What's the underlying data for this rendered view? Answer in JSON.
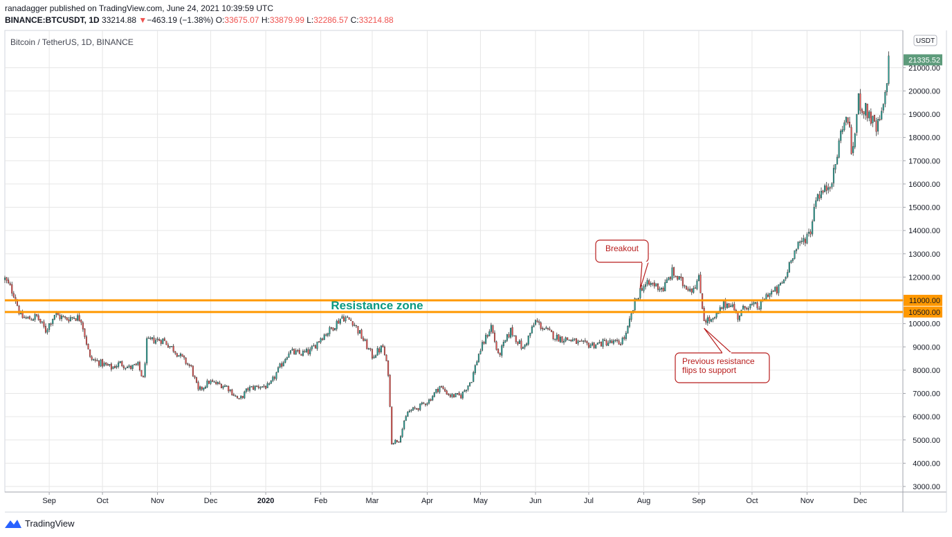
{
  "header": {
    "line1": "ranadagger published on TradingView.com, June 24, 2021 10:39:59 UTC",
    "symbol": "BINANCE:BTCUSDT, 1D",
    "last": "33214.88",
    "change": "−463.19 (−1.38%)",
    "open_label": "O:",
    "open": "33675.07",
    "high_label": "H:",
    "high": "33879.99",
    "low_label": "L:",
    "low": "32286.57",
    "close_label": "C:",
    "close": "33214.88"
  },
  "chart_title": "Bitcoin / TetherUS, 1D, BINANCE",
  "footer": {
    "brand": "TradingView"
  },
  "chart_data": {
    "type": "candlestick",
    "currency_label": "USDT",
    "ylim": [
      3000,
      22000
    ],
    "y_ticks": [
      3000,
      4000,
      5000,
      6000,
      7000,
      8000,
      9000,
      10000,
      11000,
      12000,
      13000,
      14000,
      15000,
      16000,
      17000,
      18000,
      19000,
      20000,
      21000
    ],
    "y_tick_labels": [
      "3000.00",
      "4000.00",
      "5000.00",
      "6000.00",
      "7000.00",
      "8000.00",
      "9000.00",
      "10000.00",
      "11000.00",
      "12000.00",
      "13000.00",
      "14000.00",
      "15000.00",
      "16000.00",
      "17000.00",
      "18000.00",
      "19000.00",
      "20000.00",
      "21000.00"
    ],
    "x_ticks": [
      "Sep",
      "Oct",
      "Nov",
      "Dec",
      "2020",
      "Feb",
      "Mar",
      "Apr",
      "May",
      "Jun",
      "Jul",
      "Aug",
      "Sep",
      "Oct",
      "Nov",
      "Dec"
    ],
    "x_tick_dates": [
      "2019-09-01",
      "2019-10-01",
      "2019-11-01",
      "2019-12-01",
      "2020-01-01",
      "2020-02-01",
      "2020-03-01",
      "2020-04-01",
      "2020-05-01",
      "2020-06-01",
      "2020-07-01",
      "2020-08-01",
      "2020-09-01",
      "2020-10-01",
      "2020-11-01",
      "2020-12-01"
    ],
    "x_range": [
      "2019-08-07",
      "2020-12-25"
    ],
    "price_path": [
      [
        "2019-08-07",
        11900
      ],
      [
        "2019-08-12",
        11300
      ],
      [
        "2019-08-16",
        10300
      ],
      [
        "2019-08-20",
        10200
      ],
      [
        "2019-08-25",
        10300
      ],
      [
        "2019-08-30",
        9700
      ],
      [
        "2019-09-04",
        10400
      ],
      [
        "2019-09-10",
        10200
      ],
      [
        "2019-09-15",
        10300
      ],
      [
        "2019-09-19",
        10200
      ],
      [
        "2019-09-24",
        8500
      ],
      [
        "2019-09-30",
        8300
      ],
      [
        "2019-10-06",
        8100
      ],
      [
        "2019-10-11",
        8300
      ],
      [
        "2019-10-16",
        8100
      ],
      [
        "2019-10-21",
        8200
      ],
      [
        "2019-10-24",
        7600
      ],
      [
        "2019-10-26",
        9200
      ],
      [
        "2019-10-30",
        9300
      ],
      [
        "2019-11-04",
        9300
      ],
      [
        "2019-11-10",
        8900
      ],
      [
        "2019-11-15",
        8500
      ],
      [
        "2019-11-20",
        8100
      ],
      [
        "2019-11-24",
        7100
      ],
      [
        "2019-11-30",
        7500
      ],
      [
        "2019-12-05",
        7400
      ],
      [
        "2019-12-10",
        7300
      ],
      [
        "2019-12-17",
        6700
      ],
      [
        "2019-12-22",
        7200
      ],
      [
        "2019-12-28",
        7300
      ],
      [
        "2020-01-03",
        7300
      ],
      [
        "2020-01-08",
        8000
      ],
      [
        "2020-01-14",
        8800
      ],
      [
        "2020-01-20",
        8700
      ],
      [
        "2020-01-26",
        8800
      ],
      [
        "2020-02-01",
        9400
      ],
      [
        "2020-02-06",
        9700
      ],
      [
        "2020-02-13",
        10300
      ],
      [
        "2020-02-19",
        10100
      ],
      [
        "2020-02-25",
        9300
      ],
      [
        "2020-03-01",
        8600
      ],
      [
        "2020-03-07",
        9000
      ],
      [
        "2020-03-10",
        7900
      ],
      [
        "2020-03-12",
        4900
      ],
      [
        "2020-03-16",
        5000
      ],
      [
        "2020-03-21",
        6200
      ],
      [
        "2020-03-27",
        6400
      ],
      [
        "2020-04-02",
        6700
      ],
      [
        "2020-04-08",
        7300
      ],
      [
        "2020-04-14",
        6900
      ],
      [
        "2020-04-20",
        6900
      ],
      [
        "2020-04-26",
        7600
      ],
      [
        "2020-04-30",
        8700
      ],
      [
        "2020-05-07",
        9900
      ],
      [
        "2020-05-11",
        8600
      ],
      [
        "2020-05-18",
        9700
      ],
      [
        "2020-05-25",
        8900
      ],
      [
        "2020-06-01",
        10100
      ],
      [
        "2020-06-07",
        9700
      ],
      [
        "2020-06-13",
        9400
      ],
      [
        "2020-06-21",
        9300
      ],
      [
        "2020-06-27",
        9100
      ],
      [
        "2020-07-04",
        9100
      ],
      [
        "2020-07-11",
        9200
      ],
      [
        "2020-07-18",
        9150
      ],
      [
        "2020-07-22",
        9500
      ],
      [
        "2020-07-27",
        10900
      ],
      [
        "2020-07-31",
        11600
      ],
      [
        "2020-08-06",
        11700
      ],
      [
        "2020-08-12",
        11500
      ],
      [
        "2020-08-17",
        12200
      ],
      [
        "2020-08-23",
        11700
      ],
      [
        "2020-08-28",
        11500
      ],
      [
        "2020-09-01",
        11900
      ],
      [
        "2020-09-04",
        10200
      ],
      [
        "2020-09-09",
        10100
      ],
      [
        "2020-09-15",
        10800
      ],
      [
        "2020-09-19",
        10900
      ],
      [
        "2020-09-23",
        10300
      ],
      [
        "2020-09-28",
        10800
      ],
      [
        "2020-10-05",
        10700
      ],
      [
        "2020-10-10",
        11300
      ],
      [
        "2020-10-15",
        11400
      ],
      [
        "2020-10-20",
        12000
      ],
      [
        "2020-10-23",
        12900
      ],
      [
        "2020-10-28",
        13400
      ],
      [
        "2020-11-03",
        14000
      ],
      [
        "2020-11-06",
        15500
      ],
      [
        "2020-11-11",
        15700
      ],
      [
        "2020-11-16",
        16400
      ],
      [
        "2020-11-21",
        18600
      ],
      [
        "2020-11-25",
        18700
      ],
      [
        "2020-11-26",
        17000
      ],
      [
        "2020-11-30",
        19600
      ],
      [
        "2020-12-03",
        19200
      ],
      [
        "2020-12-06",
        19000
      ],
      [
        "2020-12-10",
        18300
      ],
      [
        "2020-12-14",
        19200
      ],
      [
        "2020-12-17",
        21300
      ]
    ],
    "last_price_label": "21335.52",
    "resistance_zone": {
      "label": "Resistance zone",
      "lower": 10500,
      "upper": 11000,
      "lower_label": "10500.00",
      "upper_label": "11000.00"
    },
    "annotations": [
      {
        "text": "Breakout",
        "target_date": "2020-07-30",
        "target_price": 11500
      },
      {
        "text": "Previous resistance\nflips to support",
        "target_date": "2020-09-04",
        "target_price": 9800
      }
    ],
    "colors": {
      "up": "#26a69a",
      "down": "#ef5350",
      "candle_edge": "#2f2f2f",
      "zone": "#ff9800",
      "zone_text": "#089981",
      "grid": "#e6e6e6",
      "callout_border": "#b71c1c",
      "callout_text": "#b71c1c",
      "last_price_bg": "#5d9b7b",
      "zone_badge_bg": "#ff9800"
    }
  }
}
